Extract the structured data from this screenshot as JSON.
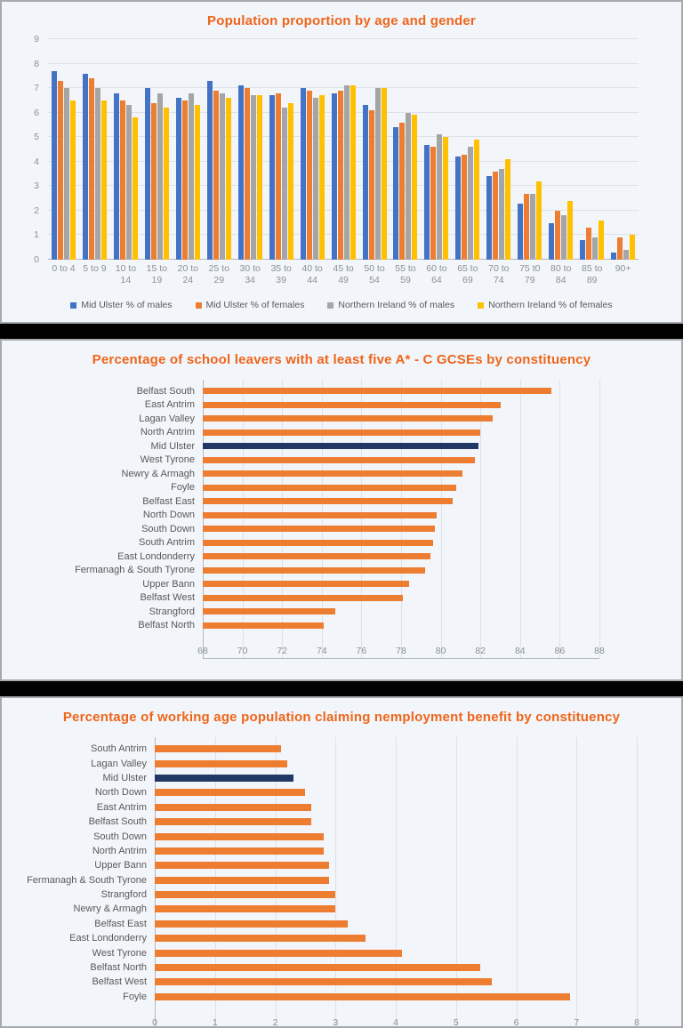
{
  "theme": {
    "panel_bg": "#F2F5F9",
    "panel_border": "#A6A9AD",
    "separator_color": "#000000",
    "title_color": "#EF651A",
    "grid_color": "#DDE2E8",
    "axis_color": "#B4BAC1",
    "tick_color": "#8A9199",
    "label_color": "#595959",
    "highlight_color": "#1F3864",
    "bar_orange": "#ED7D31"
  },
  "chart_data": [
    {
      "type": "bar",
      "title": "Population proportion by age and gender",
      "categories": [
        "0 to 4",
        "5 to 9",
        "10 to 14",
        "15 to 19",
        "20 to 24",
        "25 to 29",
        "30 to 34",
        "35 to 39",
        "40 to 44",
        "45 to 49",
        "50 to 54",
        "55 to 59",
        "60 to 64",
        "65 to 69",
        "70 to 74",
        "75 t0 79",
        "80 to 84",
        "85 to 89",
        "90+"
      ],
      "series": [
        {
          "name": "Mid Ulster % of males",
          "color": "#4472C4",
          "values": [
            7.7,
            7.6,
            6.8,
            7.0,
            6.6,
            7.3,
            7.1,
            6.7,
            7.0,
            6.8,
            6.3,
            5.4,
            4.7,
            4.2,
            3.4,
            2.3,
            1.5,
            0.8,
            0.3
          ]
        },
        {
          "name": "Mid Ulster % of females",
          "color": "#ED7D31",
          "values": [
            7.3,
            7.4,
            6.5,
            6.4,
            6.5,
            6.9,
            7.0,
            6.8,
            6.9,
            6.9,
            6.1,
            5.6,
            4.6,
            4.3,
            3.6,
            2.7,
            2.0,
            1.3,
            0.9
          ]
        },
        {
          "name": "Northern Ireland % of males",
          "color": "#A5A5A5",
          "values": [
            7.0,
            7.0,
            6.3,
            6.8,
            6.8,
            6.8,
            6.7,
            6.2,
            6.6,
            7.1,
            7.0,
            6.0,
            5.1,
            4.6,
            3.7,
            2.7,
            1.8,
            0.9,
            0.4
          ]
        },
        {
          "name": "Northern Ireland % of females",
          "color": "#FFC000",
          "values": [
            6.5,
            6.5,
            5.8,
            6.2,
            6.3,
            6.6,
            6.7,
            6.4,
            6.7,
            7.1,
            7.0,
            5.9,
            5.0,
            4.9,
            4.1,
            3.2,
            2.4,
            1.6,
            1.0
          ]
        }
      ],
      "ylim": [
        0,
        9
      ],
      "yticks": [
        0,
        1,
        2,
        3,
        4,
        5,
        6,
        7,
        8,
        9
      ],
      "grid": true,
      "legend_position": "bottom"
    },
    {
      "type": "bar-horizontal",
      "title": "Percentage of school leavers with at least five A* - C GCSEs by constituency",
      "categories": [
        "Belfast South",
        "East Antrim",
        "Lagan Valley",
        "North Antrim",
        "Mid Ulster",
        "West Tyrone",
        "Newry & Armagh",
        "Foyle",
        "Belfast East",
        "North Down",
        "South Down",
        "South Antrim",
        "East Londonderry",
        "Fermanagh & South Tyrone",
        "Upper Bann",
        "Belfast West",
        "Strangford",
        "Belfast North"
      ],
      "values": [
        85.6,
        83.0,
        82.6,
        82.0,
        81.9,
        81.7,
        81.1,
        80.8,
        80.6,
        79.8,
        79.7,
        79.6,
        79.5,
        79.2,
        78.4,
        78.1,
        74.7,
        74.1
      ],
      "highlight_category": "Mid Ulster",
      "bar_color": "#ED7D31",
      "highlight_color": "#1F3864",
      "xlim": [
        68,
        88
      ],
      "xticks": [
        68,
        70,
        72,
        74,
        76,
        78,
        80,
        82,
        84,
        86,
        88
      ],
      "grid": true
    },
    {
      "type": "bar-horizontal",
      "title": "Percentage of working age population claiming nemployment benefit by constituency",
      "categories": [
        "South Antrim",
        "Lagan Valley",
        "Mid Ulster",
        "North Down",
        "East Antrim",
        "Belfast South",
        "South Down",
        "North Antrim",
        "Upper Bann",
        "Fermanagh & South Tyrone",
        "Strangford",
        "Newry & Armagh",
        "Belfast East",
        "East Londonderry",
        "West Tyrone",
        "Belfast North",
        "Belfast West",
        "Foyle"
      ],
      "values": [
        2.1,
        2.2,
        2.3,
        2.5,
        2.6,
        2.6,
        2.8,
        2.8,
        2.9,
        2.9,
        3.0,
        3.0,
        3.2,
        3.5,
        4.1,
        5.4,
        5.6,
        6.9
      ],
      "highlight_category": "Mid Ulster",
      "bar_color": "#ED7D31",
      "highlight_color": "#1F3864",
      "xlim": [
        0,
        8
      ],
      "xticks": [
        0,
        1,
        2,
        3,
        4,
        5,
        6,
        7,
        8
      ],
      "grid": true
    }
  ]
}
